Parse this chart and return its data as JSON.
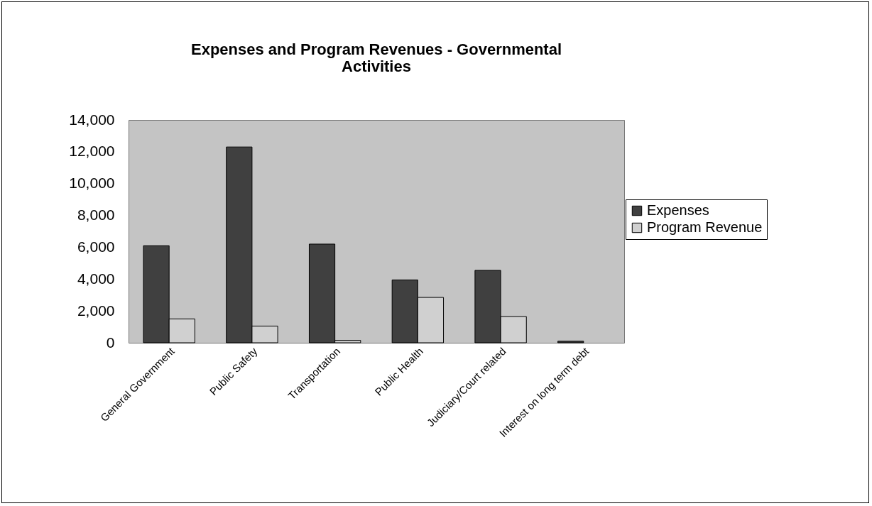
{
  "chart_data": {
    "type": "bar",
    "title": "Expenses and Program Revenues - Governmental Activities",
    "categories": [
      "General Government",
      "Public Safety",
      "Transportation",
      "Public Health",
      "Judiciary/Court related",
      "Interest on long term debt"
    ],
    "series": [
      {
        "name": "Expenses",
        "color": "#404040",
        "values": [
          6100,
          12300,
          6200,
          3950,
          4550,
          100
        ]
      },
      {
        "name": "Program Revenue",
        "color": "#d0d0d0",
        "values": [
          1500,
          1050,
          150,
          2850,
          1650,
          null
        ]
      }
    ],
    "ylim": [
      0,
      14000
    ],
    "yticks": [
      0,
      {
        "value": 2000,
        "label": "2,000"
      },
      {
        "value": 4000,
        "label": "4,000"
      },
      {
        "value": 6000,
        "label": "6,000"
      },
      {
        "value": 8000,
        "label": "8,000"
      },
      {
        "value": 10000,
        "label": "10,000"
      },
      {
        "value": 12000,
        "label": "12,000"
      },
      {
        "value": 14000,
        "label": "14,000"
      }
    ],
    "grid": false,
    "legend": "right"
  }
}
